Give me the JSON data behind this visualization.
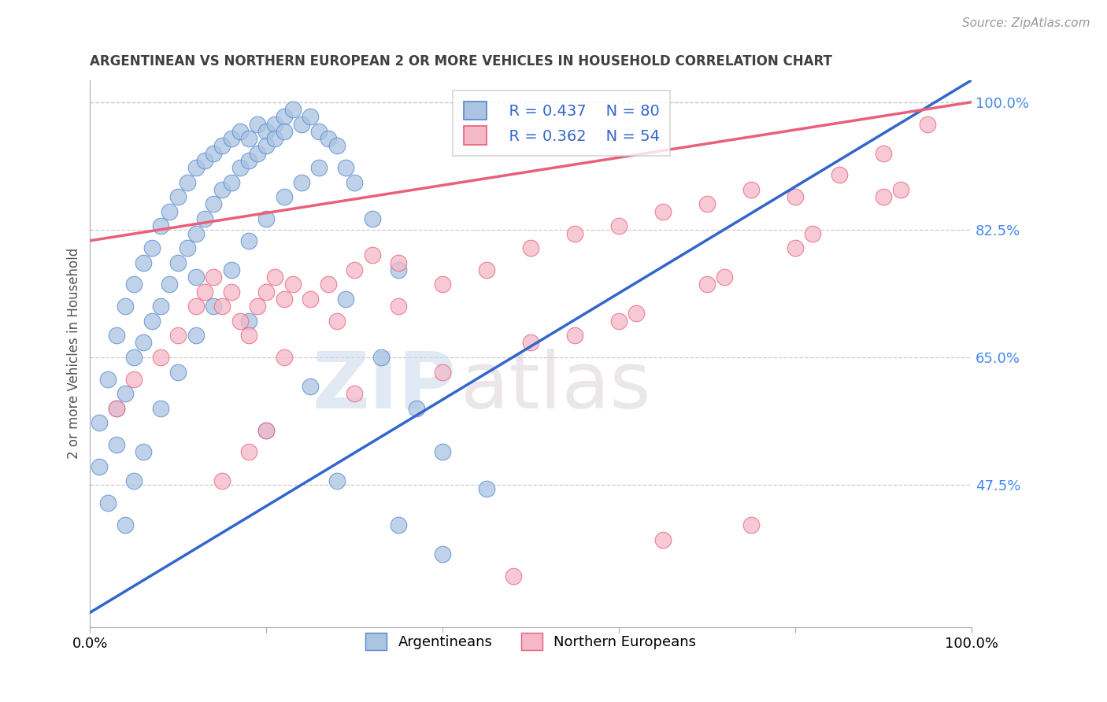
{
  "title": "ARGENTINEAN VS NORTHERN EUROPEAN 2 OR MORE VEHICLES IN HOUSEHOLD CORRELATION CHART",
  "source": "Source: ZipAtlas.com",
  "ylabel": "2 or more Vehicles in Household",
  "xlim": [
    0,
    100
  ],
  "ylim": [
    28,
    103
  ],
  "yticks_right": [
    47.5,
    65.0,
    82.5,
    100.0
  ],
  "yticklabels_right": [
    "47.5%",
    "65.0%",
    "82.5%",
    "100.0%"
  ],
  "legend_labels": [
    "Argentineans",
    "Northern Europeans"
  ],
  "legend_R": [
    "R = 0.437",
    "N = 80"
  ],
  "legend_R2": [
    "R = 0.362",
    "N = 54"
  ],
  "blue_color": "#aac4e2",
  "pink_color": "#f5b8c8",
  "blue_line_color": "#3366cc",
  "pink_line_color": "#e8607a",
  "blue_edge_color": "#5588cc",
  "pink_edge_color": "#e8607a",
  "watermark_zip": "ZIP",
  "watermark_atlas": "atlas",
  "background_color": "#ffffff",
  "grid_color": "#cccccc",
  "title_color": "#404040",
  "right_tick_color": "#4488ee",
  "blue_scatter_x": [
    1,
    1,
    2,
    2,
    3,
    3,
    3,
    4,
    4,
    5,
    5,
    6,
    6,
    7,
    7,
    8,
    8,
    9,
    9,
    10,
    10,
    11,
    11,
    12,
    12,
    13,
    13,
    14,
    14,
    15,
    15,
    16,
    16,
    17,
    17,
    18,
    18,
    19,
    19,
    20,
    20,
    21,
    21,
    22,
    22,
    23,
    24,
    25,
    26,
    27,
    28,
    29,
    30,
    32,
    35,
    4,
    5,
    6,
    8,
    10,
    12,
    14,
    16,
    18,
    20,
    22,
    24,
    26,
    29,
    33,
    37,
    40,
    45,
    20,
    28,
    35,
    40,
    12,
    18,
    25
  ],
  "blue_scatter_y": [
    56,
    50,
    62,
    45,
    68,
    58,
    53,
    72,
    60,
    75,
    65,
    78,
    67,
    80,
    70,
    83,
    72,
    85,
    75,
    87,
    78,
    89,
    80,
    91,
    82,
    92,
    84,
    93,
    86,
    94,
    88,
    95,
    89,
    96,
    91,
    95,
    92,
    97,
    93,
    96,
    94,
    97,
    95,
    98,
    96,
    99,
    97,
    98,
    96,
    95,
    94,
    91,
    89,
    84,
    77,
    42,
    48,
    52,
    58,
    63,
    68,
    72,
    77,
    81,
    84,
    87,
    89,
    91,
    73,
    65,
    58,
    52,
    47,
    55,
    48,
    42,
    38,
    76,
    70,
    61
  ],
  "pink_scatter_x": [
    3,
    5,
    8,
    10,
    12,
    13,
    14,
    15,
    16,
    17,
    18,
    19,
    20,
    21,
    22,
    23,
    25,
    27,
    30,
    32,
    35,
    22,
    28,
    35,
    40,
    45,
    50,
    55,
    60,
    65,
    70,
    75,
    80,
    85,
    90,
    95,
    48,
    65,
    75,
    20,
    18,
    15,
    30,
    40,
    50,
    60,
    70,
    80,
    90,
    55,
    62,
    72,
    82,
    92
  ],
  "pink_scatter_y": [
    58,
    62,
    65,
    68,
    72,
    74,
    76,
    72,
    74,
    70,
    68,
    72,
    74,
    76,
    73,
    75,
    73,
    75,
    77,
    79,
    78,
    65,
    70,
    72,
    75,
    77,
    80,
    82,
    83,
    85,
    86,
    88,
    87,
    90,
    93,
    97,
    35,
    40,
    42,
    55,
    52,
    48,
    60,
    63,
    67,
    70,
    75,
    80,
    87,
    68,
    71,
    76,
    82,
    88
  ],
  "blue_line_x0": 0,
  "blue_line_x1": 100,
  "blue_line_y0": 30,
  "blue_line_y1": 103,
  "pink_line_x0": 0,
  "pink_line_x1": 100,
  "pink_line_y0": 81,
  "pink_line_y1": 100
}
